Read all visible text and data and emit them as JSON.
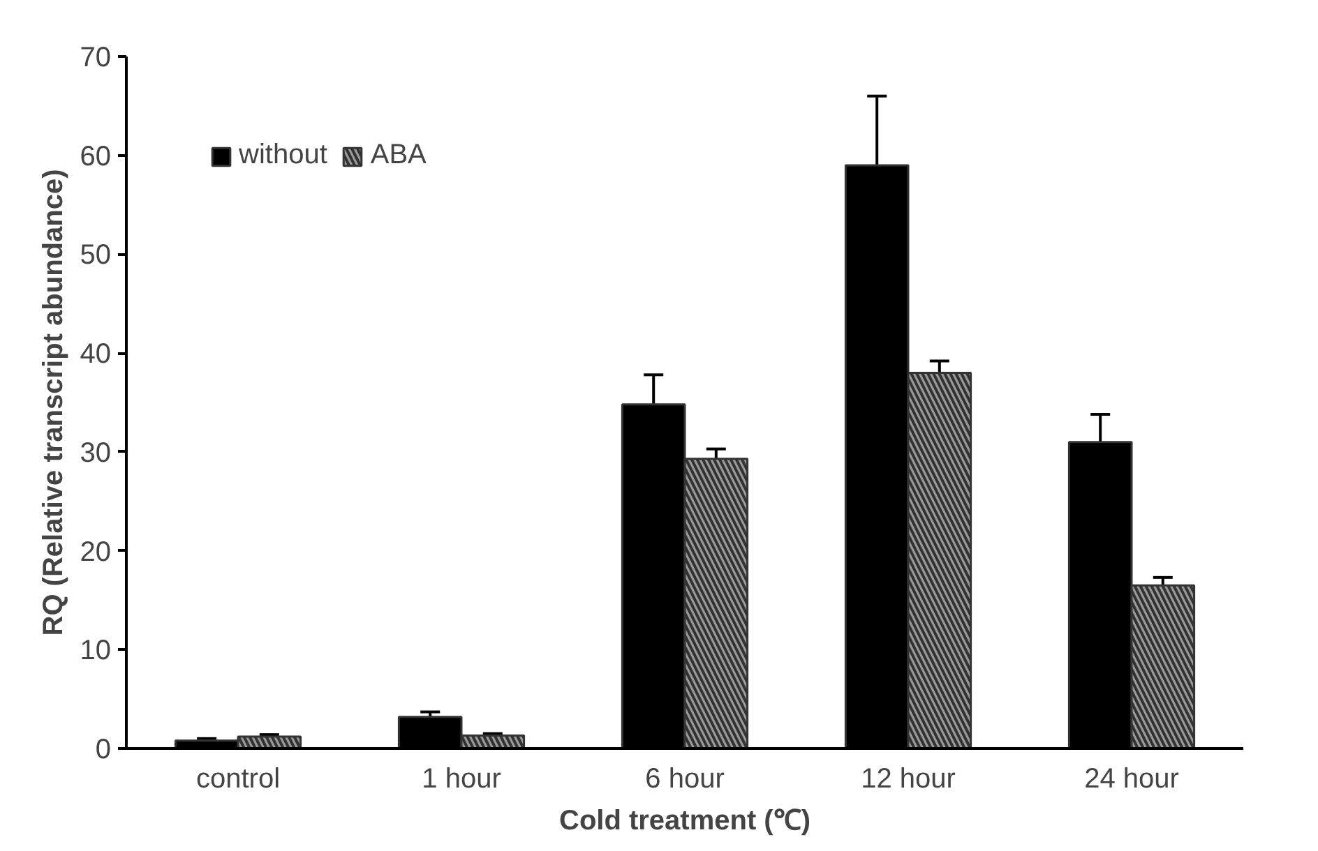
{
  "chart_data": {
    "type": "bar",
    "xlabel": "Cold treatment (℃)",
    "ylabel": "RQ (Relative transcript abundance)",
    "categories": [
      "control",
      "1 hour",
      "6 hour",
      "12 hour",
      "24 hour"
    ],
    "series": [
      {
        "name": "without",
        "color": "#000000",
        "values": [
          0.8,
          3.2,
          34.8,
          59,
          31
        ],
        "errors": [
          0.2,
          0.5,
          3,
          7,
          2.8
        ]
      },
      {
        "name": "ABA",
        "color": "#999999",
        "values": [
          1.2,
          1.3,
          29.3,
          38,
          16.5
        ],
        "errors": [
          0.2,
          0.2,
          1,
          1.2,
          0.8
        ]
      }
    ],
    "ylim": [
      0,
      70
    ],
    "yticks": [
      0,
      10,
      20,
      30,
      40,
      50,
      60,
      70
    ],
    "grid": false,
    "legend": "top left"
  }
}
